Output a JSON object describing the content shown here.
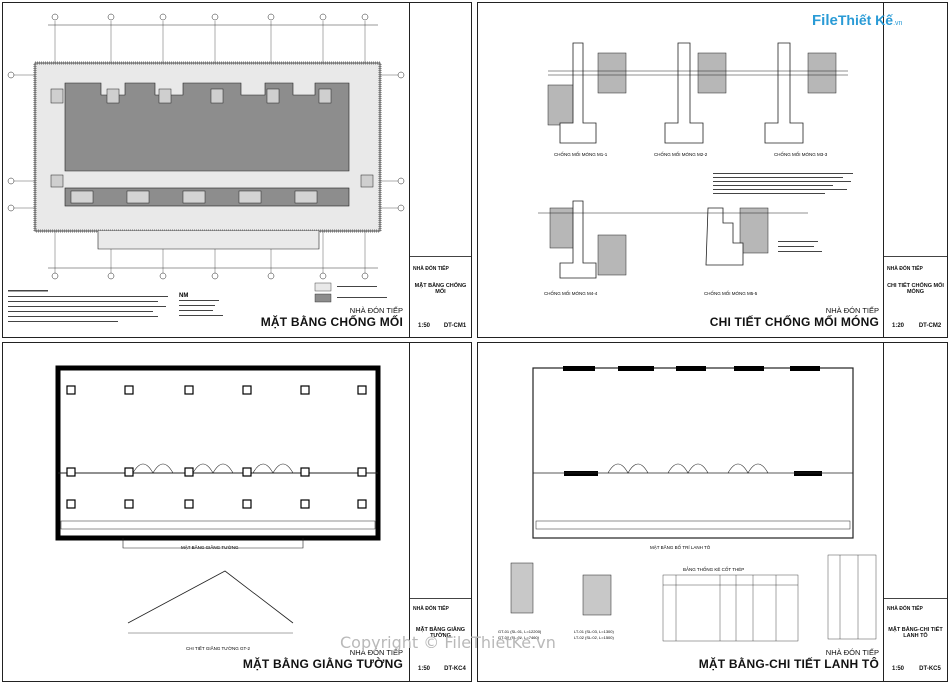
{
  "sheets": [
    {
      "project": "NHÀ ĐÓN TIẾP",
      "title": "MẶT BẰNG CHỐNG MỐI",
      "scale": "1:50",
      "code": "DT-CM1",
      "tb_name": "MẶT BẰNG CHỐNG MỐI"
    },
    {
      "project": "NHÀ ĐÓN TIẾP",
      "title": "CHI TIẾT CHỐNG MỐI MÓNG",
      "scale": "1:20",
      "code": "DT-CM2",
      "tb_name": "CHI TIẾT CHỐNG MỐI MÓNG"
    },
    {
      "project": "NHÀ ĐÓN TIẾP",
      "title": "MẶT BẰNG GIẰNG TƯỜNG",
      "scale": "1:50",
      "code": "DT-KC4",
      "tb_name": "MẶT BẰNG GIẰNG TƯỜNG"
    },
    {
      "project": "NHÀ ĐÓN TIẾP",
      "title": "MẶT BẰNG-CHI TIẾT LANH TÔ",
      "scale": "1:50",
      "code": "DT-KC5",
      "tb_name": "MẶT BẰNG-CHI TIẾT LANH TÔ"
    }
  ],
  "titleblock": {
    "project_label": "NHÀ ĐÓN TIẾP"
  },
  "cm2_details": [
    "CHỐNG MỐI MÓNG M1-1",
    "CHỐNG MỐI MÓNG M2-2",
    "CHỐNG MỐI MÓNG M3-3",
    "CHỐNG MỐI MÓNG M4-4",
    "CHỐNG MỐI MÓNG M5-5"
  ],
  "kc4_labels": {
    "plan": "MẶT BẰNG GIẰNG TƯỜNG",
    "detail": "CHI TIẾT GIẰNG TƯỜNG GT-2"
  },
  "kc5_labels": {
    "plan": "MẶT BẰNG BỐ TRÍ LANH TÔ",
    "table": "BẢNG THỐNG KÊ CỐT THÉP",
    "gt1": "GT-01 (SL:01, L=12200)",
    "gt2": "GT-02 (SL:02, L=7460)",
    "lt1": "LT-01 (SL:03, L=1300)",
    "lt2": "LT-02 (SL:02, L=1500)"
  },
  "watermark": "Copyright © FileThietKe.vn",
  "logo": {
    "part1": "File",
    "part2": "Thiết Kế",
    ".vn": ".vn",
    "domain": ".vn"
  }
}
